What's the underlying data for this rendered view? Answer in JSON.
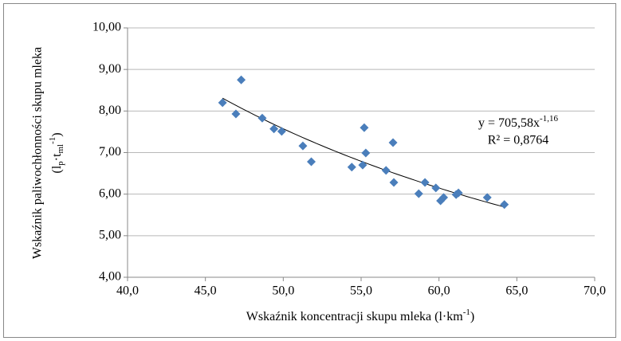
{
  "chart_data": {
    "type": "scatter",
    "x_label": {
      "main": "Wskaźnik  koncentracji skupu mleka (l·km",
      "sup": "-1",
      "end": ")"
    },
    "y_label": {
      "line1": "Wskaźnik paliwochłonności skupu mleka",
      "open": "(l",
      "sub1": "p",
      "dot": "·t",
      "sub2": "ml",
      "sup": "-1",
      "close": ")"
    },
    "annotation": {
      "equation": "y = 705,58x",
      "exponent": "-1,16",
      "r2": "R² = 0,8764"
    },
    "series": [
      {
        "name": "data",
        "color": "#4a7ebb",
        "x": [
          46.1,
          46.96,
          47.3,
          48.65,
          49.4,
          49.9,
          51.26,
          51.8,
          55.2,
          54.4,
          55.1,
          55.3,
          57.05,
          57.1,
          56.6,
          58.7,
          59.1,
          59.8,
          60.1,
          60.3,
          61.1,
          61.25,
          63.1,
          64.2
        ],
        "values": [
          8.2,
          7.93,
          8.75,
          7.83,
          7.57,
          7.51,
          7.16,
          6.78,
          7.6,
          6.65,
          6.7,
          6.99,
          7.24,
          6.28,
          6.57,
          6.01,
          6.28,
          6.15,
          5.84,
          5.92,
          5.99,
          6.03,
          5.92,
          5.75
        ]
      }
    ],
    "xlim": [
      40,
      70
    ],
    "xticks": [
      {
        "value": 40,
        "label": "40,0"
      },
      {
        "value": 45,
        "label": "45,0"
      },
      {
        "value": 50,
        "label": "50,0"
      },
      {
        "value": 55,
        "label": "55,0"
      },
      {
        "value": 60,
        "label": "60,0"
      },
      {
        "value": 65,
        "label": "65,0"
      },
      {
        "value": 70,
        "label": "70,0"
      }
    ],
    "ylim": [
      4,
      10
    ],
    "yticks": [
      {
        "value": 4,
        "label": "4,00"
      },
      {
        "value": 5,
        "label": "5,00"
      },
      {
        "value": 6,
        "label": "6,00"
      },
      {
        "value": 7,
        "label": "7,00"
      },
      {
        "value": 8,
        "label": "8,00"
      },
      {
        "value": 9,
        "label": "9,00"
      },
      {
        "value": 10,
        "label": "10,00"
      }
    ],
    "grid": true
  }
}
